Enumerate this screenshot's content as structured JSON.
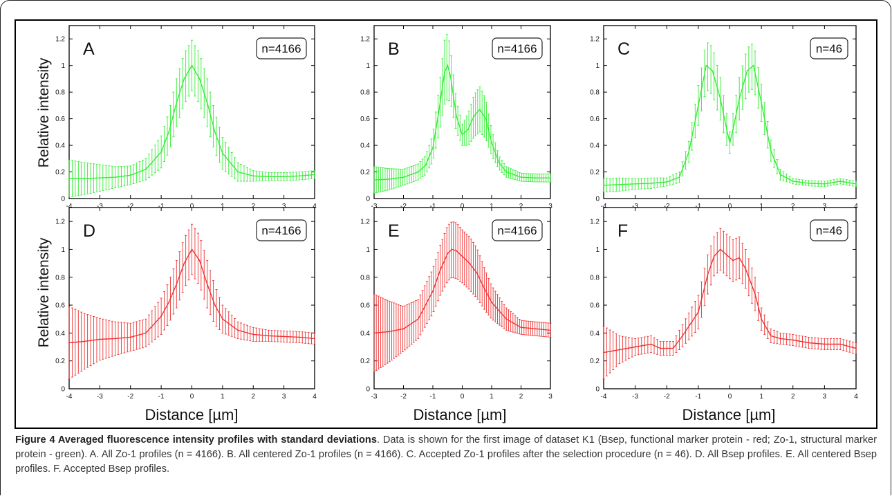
{
  "figure": {
    "caption_title": "Figure 4 Averaged fluorescence intensity profiles with standard deviations",
    "caption_text": ". Data is shown for the first image of dataset K1 (Bsep, functional marker protein - red; Zo-1, structural marker protein - green). A. All Zo-1 profiles (n = 4166). B. All centered Zo-1 profiles (n = 4166). C. Accepted Zo-1 profiles after the selection procedure (n = 46). D. All Bsep profiles. E. All centered Bsep profiles. F. Accepted Bsep profiles."
  },
  "axis_titles": {
    "ylabel": "Relative intensity",
    "xlabel": "Distance [µm]"
  },
  "chart_data": [
    {
      "type": "line",
      "panel": "A",
      "annotation": "n=4166",
      "color": "#33ee33",
      "xlim": [
        -4,
        4
      ],
      "ylim": [
        0,
        1.3
      ],
      "xticks": [
        -4,
        -3,
        -2,
        -1,
        0,
        1,
        2,
        3,
        4
      ],
      "yticks": [
        0,
        0.2,
        0.4,
        0.6,
        0.8,
        1,
        1.2
      ],
      "series": [
        {
          "x": [
            -4,
            -3.5,
            -3,
            -2.5,
            -2,
            -1.5,
            -1,
            -0.75,
            -0.5,
            -0.25,
            0,
            0.25,
            0.5,
            0.75,
            1,
            1.5,
            2,
            2.5,
            3,
            3.5,
            4
          ],
          "y": [
            0.15,
            0.15,
            0.155,
            0.16,
            0.175,
            0.22,
            0.35,
            0.5,
            0.72,
            0.9,
            1.0,
            0.9,
            0.72,
            0.5,
            0.34,
            0.2,
            0.17,
            0.165,
            0.165,
            0.17,
            0.18
          ],
          "sd": [
            0.14,
            0.12,
            0.1,
            0.08,
            0.07,
            0.08,
            0.12,
            0.15,
            0.18,
            0.19,
            0.19,
            0.19,
            0.18,
            0.15,
            0.12,
            0.07,
            0.04,
            0.03,
            0.03,
            0.03,
            0.03
          ]
        }
      ]
    },
    {
      "type": "line",
      "panel": "B",
      "annotation": "n=4166",
      "color": "#33ee33",
      "xlim": [
        -3,
        3
      ],
      "ylim": [
        0,
        1.3
      ],
      "xticks": [
        -3,
        -2,
        -1,
        0,
        1,
        2,
        3
      ],
      "yticks": [
        0,
        0.2,
        0.4,
        0.6,
        0.8,
        1,
        1.2
      ],
      "series": [
        {
          "x": [
            -3,
            -2.5,
            -2,
            -1.5,
            -1.25,
            -1,
            -0.8,
            -0.6,
            -0.5,
            -0.4,
            -0.2,
            0,
            0.2,
            0.4,
            0.6,
            0.8,
            1,
            1.25,
            1.5,
            2,
            2.5,
            3
          ],
          "y": [
            0.14,
            0.145,
            0.16,
            0.2,
            0.25,
            0.38,
            0.65,
            0.95,
            1.0,
            0.92,
            0.62,
            0.48,
            0.52,
            0.62,
            0.67,
            0.6,
            0.42,
            0.27,
            0.2,
            0.16,
            0.155,
            0.155
          ],
          "sd": [
            0.1,
            0.08,
            0.06,
            0.06,
            0.07,
            0.1,
            0.17,
            0.24,
            0.25,
            0.2,
            0.12,
            0.08,
            0.12,
            0.16,
            0.17,
            0.15,
            0.1,
            0.05,
            0.04,
            0.03,
            0.03,
            0.03
          ]
        }
      ]
    },
    {
      "type": "line",
      "panel": "C",
      "annotation": "n=46",
      "color": "#33ee33",
      "xlim": [
        -4,
        4
      ],
      "ylim": [
        0,
        1.3
      ],
      "xticks": [
        -4,
        -3,
        -2,
        -1,
        0,
        1,
        2,
        3,
        4
      ],
      "yticks": [
        0,
        0.2,
        0.4,
        0.6,
        0.8,
        1,
        1.2
      ],
      "series": [
        {
          "x": [
            -4,
            -3.5,
            -3,
            -2.5,
            -2,
            -1.6,
            -1.3,
            -1,
            -0.75,
            -0.55,
            -0.3,
            -0.1,
            0,
            0.1,
            0.3,
            0.55,
            0.75,
            1,
            1.3,
            1.6,
            2,
            2.5,
            3,
            3.5,
            4
          ],
          "y": [
            0.1,
            0.105,
            0.11,
            0.115,
            0.125,
            0.16,
            0.35,
            0.7,
            1.0,
            0.96,
            0.75,
            0.52,
            0.42,
            0.52,
            0.75,
            0.96,
            1.0,
            0.72,
            0.36,
            0.18,
            0.13,
            0.115,
            0.11,
            0.13,
            0.11
          ],
          "sd": [
            0.05,
            0.05,
            0.04,
            0.04,
            0.03,
            0.04,
            0.08,
            0.15,
            0.18,
            0.18,
            0.16,
            0.12,
            0.08,
            0.12,
            0.16,
            0.17,
            0.17,
            0.14,
            0.08,
            0.04,
            0.02,
            0.02,
            0.02,
            0.02,
            0.02
          ]
        }
      ]
    },
    {
      "type": "line",
      "panel": "D",
      "annotation": "n=4166",
      "color": "#ee3333",
      "xlim": [
        -4,
        4
      ],
      "ylim": [
        0,
        1.3
      ],
      "xticks": [
        -4,
        -3,
        -2,
        -1,
        0,
        1,
        2,
        3,
        4
      ],
      "yticks": [
        0,
        0.2,
        0.4,
        0.6,
        0.8,
        1,
        1.2
      ],
      "series": [
        {
          "x": [
            -4,
            -3.5,
            -3,
            -2.5,
            -2,
            -1.5,
            -1,
            -0.75,
            -0.5,
            -0.25,
            0,
            0.25,
            0.5,
            0.75,
            1,
            1.5,
            2,
            2.5,
            3,
            3.5,
            4
          ],
          "y": [
            0.33,
            0.34,
            0.355,
            0.36,
            0.37,
            0.4,
            0.52,
            0.62,
            0.75,
            0.9,
            1.0,
            0.92,
            0.75,
            0.6,
            0.5,
            0.42,
            0.39,
            0.38,
            0.375,
            0.37,
            0.36
          ],
          "sd": [
            0.26,
            0.2,
            0.15,
            0.12,
            0.1,
            0.1,
            0.13,
            0.15,
            0.17,
            0.18,
            0.18,
            0.18,
            0.17,
            0.14,
            0.1,
            0.06,
            0.05,
            0.04,
            0.04,
            0.04,
            0.04
          ]
        }
      ]
    },
    {
      "type": "line",
      "panel": "E",
      "annotation": "n=4166",
      "color": "#ee3333",
      "xlim": [
        -3,
        3
      ],
      "ylim": [
        0,
        1.3
      ],
      "xticks": [
        -3,
        -2,
        -1,
        0,
        1,
        2,
        3
      ],
      "yticks": [
        0,
        0.2,
        0.4,
        0.6,
        0.8,
        1,
        1.2
      ],
      "series": [
        {
          "x": [
            -3,
            -2.5,
            -2,
            -1.5,
            -1,
            -0.75,
            -0.5,
            -0.35,
            -0.2,
            0,
            0.25,
            0.5,
            0.75,
            1,
            1.5,
            2,
            2.5,
            3
          ],
          "y": [
            0.4,
            0.41,
            0.43,
            0.5,
            0.7,
            0.85,
            0.97,
            1.0,
            0.99,
            0.95,
            0.9,
            0.83,
            0.72,
            0.62,
            0.5,
            0.44,
            0.43,
            0.42
          ],
          "sd": [
            0.28,
            0.22,
            0.16,
            0.14,
            0.16,
            0.18,
            0.2,
            0.2,
            0.2,
            0.19,
            0.19,
            0.18,
            0.15,
            0.12,
            0.08,
            0.05,
            0.05,
            0.05
          ]
        }
      ]
    },
    {
      "type": "line",
      "panel": "F",
      "annotation": "n=46",
      "color": "#ee3333",
      "xlim": [
        -4,
        4
      ],
      "ylim": [
        0,
        1.3
      ],
      "xticks": [
        -4,
        -3,
        -2,
        -1,
        0,
        1,
        2,
        3,
        4
      ],
      "yticks": [
        0,
        0.2,
        0.4,
        0.6,
        0.8,
        1,
        1.2
      ],
      "series": [
        {
          "x": [
            -4,
            -3.5,
            -3,
            -2.5,
            -2.2,
            -1.8,
            -1.5,
            -1,
            -0.7,
            -0.5,
            -0.3,
            -0.1,
            0.1,
            0.3,
            0.5,
            0.8,
            1,
            1.3,
            1.6,
            2,
            2.5,
            3,
            3.5,
            4
          ],
          "y": [
            0.26,
            0.28,
            0.3,
            0.32,
            0.29,
            0.29,
            0.38,
            0.55,
            0.82,
            0.95,
            1.0,
            0.96,
            0.92,
            0.94,
            0.86,
            0.68,
            0.5,
            0.38,
            0.36,
            0.35,
            0.33,
            0.32,
            0.32,
            0.29
          ],
          "sd": [
            0.19,
            0.1,
            0.06,
            0.06,
            0.05,
            0.05,
            0.08,
            0.12,
            0.14,
            0.14,
            0.15,
            0.15,
            0.15,
            0.15,
            0.14,
            0.12,
            0.08,
            0.05,
            0.04,
            0.04,
            0.04,
            0.04,
            0.04,
            0.04
          ]
        }
      ]
    }
  ]
}
